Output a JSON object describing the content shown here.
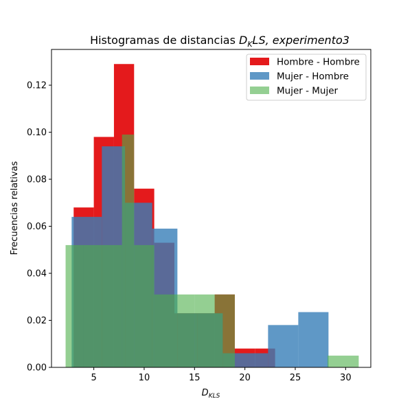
{
  "chart_data": {
    "type": "bar",
    "histogram": true,
    "title": "Histogramas de distancias D_KLS, experimento3",
    "title_parts": {
      "prefix": "Histogramas de distancias ",
      "math_main": "D",
      "math_sub": "K",
      "math_rest": "LS, experimento3"
    },
    "xlabel": "D_KLS",
    "xlabel_parts": {
      "main": "D",
      "sub": "KLS"
    },
    "ylabel": "Frecuencias relativas",
    "xlim": [
      0.8,
      32.5
    ],
    "ylim": [
      0.0,
      0.1352
    ],
    "xticks": [
      5,
      10,
      15,
      20,
      25,
      30
    ],
    "xtick_labels": [
      "5",
      "10",
      "15",
      "20",
      "25",
      "30"
    ],
    "yticks": [
      0.0,
      0.02,
      0.04,
      0.06,
      0.08,
      0.1,
      0.12
    ],
    "ytick_labels": [
      "0.00",
      "0.02",
      "0.04",
      "0.06",
      "0.08",
      "0.10",
      "0.12"
    ],
    "grid": false,
    "legend_position": "upper right",
    "series": [
      {
        "name": "Hombre - Hombre",
        "color": "#e41a1c",
        "alpha": 1.0,
        "bins": [
          3.0,
          5.0,
          7.0,
          9.0,
          11.0,
          13.0,
          15.0,
          17.0,
          19.0,
          21.0,
          23.0
        ],
        "values": [
          0.068,
          0.098,
          0.129,
          0.076,
          0.053,
          0.023,
          0.023,
          0.031,
          0.008,
          0.008
        ]
      },
      {
        "name": "Mujer - Hombre",
        "color": "#377eb8",
        "alpha": 0.8,
        "bins": [
          2.8,
          5.8,
          8.1,
          10.8,
          13.3,
          15.3,
          17.8,
          20.3,
          22.3,
          25.3,
          28.3
        ],
        "values": [
          0.064,
          0.094,
          0.07,
          0.059,
          0.023,
          0.023,
          0.006,
          0.006,
          0.018,
          0.0235
        ]
      },
      {
        "name": "Mujer - Mujer",
        "color": "#4daf4a",
        "alpha": 0.6,
        "bins": [
          2.2,
          4.0,
          7.8,
          9.0,
          11.0,
          13.0,
          15.0,
          19.0,
          22.8,
          25.3,
          26.3,
          28.2,
          31.3
        ],
        "values": [
          0.052,
          0.052,
          0.099,
          0.052,
          0.031,
          0.031,
          0.031,
          0.0,
          0.0,
          0.0,
          0.0,
          0.005
        ]
      }
    ]
  }
}
